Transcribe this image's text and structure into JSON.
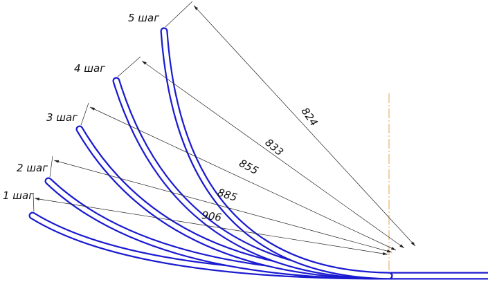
{
  "steps": [
    {
      "label": "1 шаг",
      "dimension": 906
    },
    {
      "label": "2 шаг",
      "dimension": 885
    },
    {
      "label": "3 шаг",
      "dimension": 855
    },
    {
      "label": "4 шаг",
      "dimension": 833
    },
    {
      "label": "5 шаг",
      "dimension": 824
    }
  ]
}
